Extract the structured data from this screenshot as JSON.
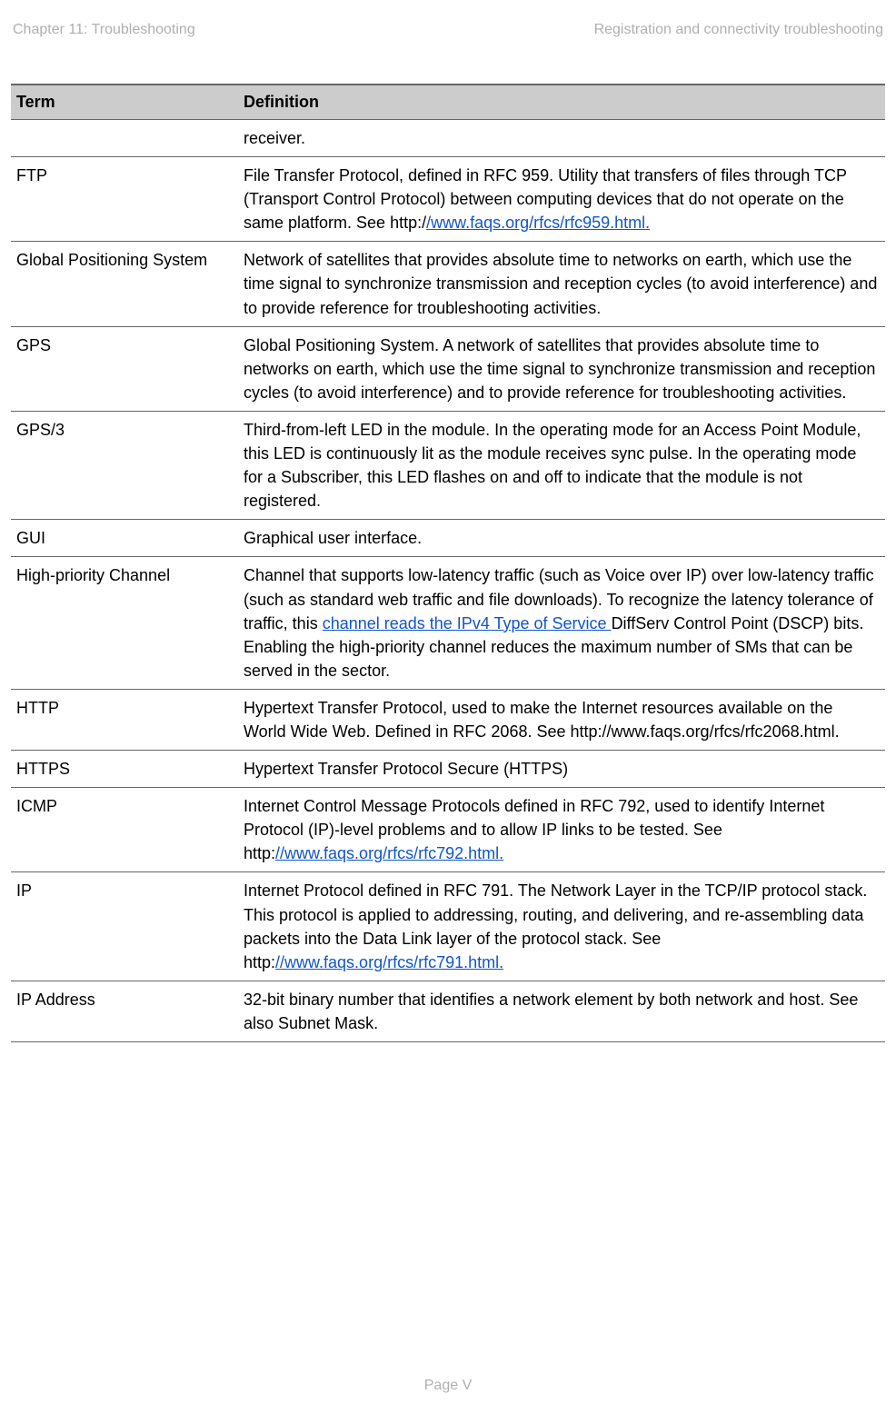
{
  "header": {
    "left": "Chapter 11:  Troubleshooting",
    "right": "Registration and connectivity troubleshooting"
  },
  "table": {
    "columns": [
      "Term",
      "Definition"
    ],
    "rows": [
      {
        "term": "",
        "prefix": "receiver.",
        "link": "",
        "suffix": ""
      },
      {
        "term": "FTP",
        "prefix": "File Transfer Protocol, defined in RFC 959. Utility that transfers of files through TCP (Transport Control Protocol) between computing devices that do not operate on the same platform. See http:/",
        "link": "/www.faqs.org/rfcs/rfc959.html.",
        "suffix": ""
      },
      {
        "term": "Global Positioning System",
        "prefix": "Network of satellites that provides absolute time to networks on earth, which use the time signal to synchronize transmission and reception cycles (to avoid interference) and to provide reference for troubleshooting activities.",
        "link": "",
        "suffix": ""
      },
      {
        "term": "GPS",
        "prefix": "Global Positioning System. A network of satellites that provides absolute time to networks on earth, which use the time signal to synchronize transmission and reception cycles (to avoid interference) and to provide reference for troubleshooting activities.",
        "link": "",
        "suffix": ""
      },
      {
        "term": "GPS/3",
        "prefix": "Third-from-left LED in the module. In the operating mode for an Access Point Module, this LED is continuously lit as the module receives sync pulse. In the operating mode for a Subscriber, this LED flashes on and off to indicate that the module is not registered.",
        "link": "",
        "suffix": ""
      },
      {
        "term": "GUI",
        "prefix": "Graphical user interface.",
        "link": "",
        "suffix": ""
      },
      {
        "term": "High-priority Channel",
        "prefix": "Channel that supports low-latency traffic (such as Voice over IP) over low-latency traffic (such as standard web traffic and file downloads). To recognize the latency tolerance of traffic, this ",
        "link": "channel reads the IPv4 Type of Service ",
        "suffix": "DiffServ Control Point (DSCP) bits. Enabling the high-priority channel reduces the maximum number of SMs that can be served in the sector."
      },
      {
        "term": "HTTP",
        "prefix": "Hypertext Transfer Protocol, used to make the Internet resources available on the World Wide Web. Defined in RFC 2068. See http://www.faqs.org/rfcs/rfc2068.html.",
        "link": "",
        "suffix": ""
      },
      {
        "term": "HTTPS",
        "prefix": "Hypertext Transfer Protocol Secure (HTTPS)",
        "link": "",
        "suffix": ""
      },
      {
        "term": "ICMP",
        "prefix": "Internet Control Message Protocols defined in RFC 792, used to identify Internet Protocol (IP)-level problems and to allow IP links to be tested. See http:",
        "link": "//www.faqs.org/rfcs/rfc792.html.",
        "suffix": ""
      },
      {
        "term": "IP",
        "prefix": "Internet Protocol defined in RFC 791. The Network Layer in the TCP/IP protocol stack. This protocol is applied to addressing, routing, and delivering, and re-assembling data packets into the Data Link layer of the protocol stack. See http:",
        "link": "//www.faqs.org/rfcs/rfc791.html.",
        "suffix": ""
      },
      {
        "term": "IP Address",
        "prefix": "32-bit binary number that identifies a network element by both network and host. See also Subnet Mask.",
        "link": "",
        "suffix": ""
      }
    ]
  },
  "footer": "Page V"
}
